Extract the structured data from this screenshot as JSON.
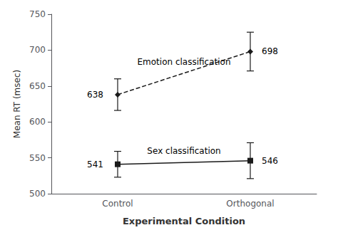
{
  "chart_data": {
    "type": "line",
    "xlabel": "Experimental Condition",
    "ylabel": "Mean RT (msec)",
    "categories": [
      "Control",
      "Orthogonal"
    ],
    "series": [
      {
        "name": "Emotion classification",
        "values": [
          638,
          698
        ],
        "errors": [
          22,
          27
        ],
        "color": "#1a1a1a",
        "marker": "diamond",
        "line_style": "dashed"
      },
      {
        "name": "Sex classification",
        "values": [
          541,
          546
        ],
        "errors": [
          18,
          25
        ],
        "color": "#1a1a1a",
        "marker": "square",
        "line_style": "solid"
      }
    ],
    "ylim": [
      500,
      750
    ],
    "yticks": [
      500,
      550,
      600,
      650,
      700,
      750
    ],
    "grid": false,
    "data_labels": true
  }
}
